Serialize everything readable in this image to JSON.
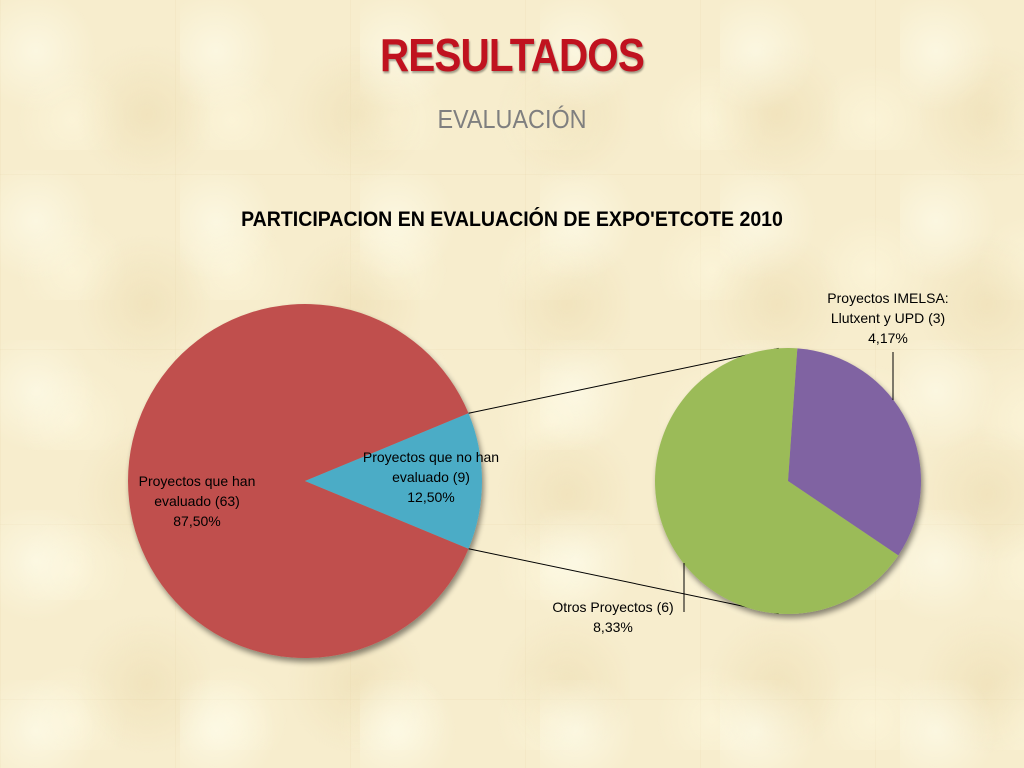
{
  "slide": {
    "title": "RESULTADOS",
    "subtitle": "EVALUACIÓN"
  },
  "chart_data": {
    "type": "pie",
    "title": "PARTICIPACION EN EVALUACIÓN DE EXPO'ETCOTE 2010",
    "main_pie": {
      "slices": [
        {
          "name": "Proyectos que han evaluado (63)",
          "value": 63,
          "percent": 87.5,
          "color": "#c0504d",
          "label_lines": [
            "Proyectos que han",
            "evaluado  (63)",
            "87,50%"
          ]
        },
        {
          "name": "Proyectos que no han evaluado (9)",
          "value": 9,
          "percent": 12.5,
          "color": "#4bacc6",
          "label_lines": [
            "Proyectos que no han",
            "evaluado (9)",
            "12,50%"
          ]
        }
      ]
    },
    "secondary_pie": {
      "breakdown_of": "Proyectos que no han evaluado (9)",
      "slices": [
        {
          "name": "Proyectos IMELSA: Llutxent y UPD (3)",
          "value": 3,
          "percent": 4.17,
          "color": "#8064a2",
          "label_lines": [
            "Proyectos IMELSA:",
            "Llutxent y UPD (3)",
            "4,17%"
          ]
        },
        {
          "name": "Otros Proyectos (6)",
          "value": 6,
          "percent": 8.33,
          "color": "#9bbb59",
          "label_lines": [
            "Otros  Proyectos  (6)",
            "8,33%"
          ]
        }
      ]
    }
  }
}
